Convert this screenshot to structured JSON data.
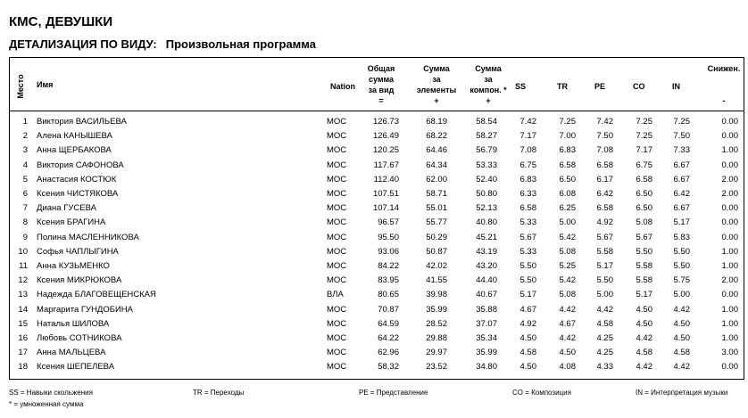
{
  "title": "КМС, ДЕВУШКИ",
  "subtitle": {
    "label": "ДЕТАЛИЗАЦИЯ ПО ВИДУ:",
    "program": "Произвольная программа"
  },
  "headers": {
    "place": "Место",
    "name": "Имя",
    "nation": "Nation",
    "total": [
      "Общая",
      "сумма",
      "за вид",
      "="
    ],
    "elements": [
      "Сумма",
      "за",
      "элементы",
      "+"
    ],
    "components": [
      "Сумма",
      "за",
      "компон. *",
      "+"
    ],
    "ss": "SS",
    "tr": "TR",
    "pe": "PE",
    "co": "CO",
    "in": "IN",
    "deductions": [
      "Снижен.",
      "-"
    ]
  },
  "rows": [
    {
      "place": "1",
      "name": "Виктория ВАСИЛЬЕВА",
      "nation": "МОС",
      "total": "126.73",
      "elements": "68.19",
      "components": "58.54",
      "ss": "7.42",
      "tr": "7.25",
      "pe": "7.42",
      "co": "7.25",
      "in": "7.25",
      "ded": "0.00"
    },
    {
      "place": "2",
      "name": "Алена КАНЫШЕВА",
      "nation": "МОС",
      "total": "126.49",
      "elements": "68.22",
      "components": "58.27",
      "ss": "7.17",
      "tr": "7.00",
      "pe": "7.50",
      "co": "7.25",
      "in": "7.50",
      "ded": "0.00"
    },
    {
      "place": "3",
      "name": "Анна ЩЕРБАКОВА",
      "nation": "МОС",
      "total": "120.25",
      "elements": "64.46",
      "components": "56.79",
      "ss": "7.08",
      "tr": "6.83",
      "pe": "7.08",
      "co": "7.17",
      "in": "7.33",
      "ded": "1.00"
    },
    {
      "place": "4",
      "name": "Виктория САФОНОВА",
      "nation": "МОС",
      "total": "117.67",
      "elements": "64.34",
      "components": "53.33",
      "ss": "6.75",
      "tr": "6.58",
      "pe": "6.58",
      "co": "6.75",
      "in": "6.67",
      "ded": "0.00"
    },
    {
      "place": "5",
      "name": "Анастасия КОСТЮК",
      "nation": "МОС",
      "total": "112.40",
      "elements": "62.00",
      "components": "52.40",
      "ss": "6.83",
      "tr": "6.50",
      "pe": "6.17",
      "co": "6.58",
      "in": "6.67",
      "ded": "2.00"
    },
    {
      "place": "6",
      "name": "Ксения ЧИСТЯКОВА",
      "nation": "МОС",
      "total": "107.51",
      "elements": "58.71",
      "components": "50.80",
      "ss": "6.33",
      "tr": "6.08",
      "pe": "6.42",
      "co": "6.50",
      "in": "6.42",
      "ded": "2.00"
    },
    {
      "place": "7",
      "name": "Диана ГУСЕВА",
      "nation": "МОС",
      "total": "107.14",
      "elements": "55.01",
      "components": "52.13",
      "ss": "6.58",
      "tr": "6.25",
      "pe": "6.58",
      "co": "6.50",
      "in": "6.67",
      "ded": "0.00"
    },
    {
      "place": "8",
      "name": "Ксения БРАГИНА",
      "nation": "МОС",
      "total": "96.57",
      "elements": "55.77",
      "components": "40.80",
      "ss": "5.33",
      "tr": "5.00",
      "pe": "4.92",
      "co": "5.08",
      "in": "5.17",
      "ded": "0.00"
    },
    {
      "place": "9",
      "name": "Полина МАСЛЕННИКОВА",
      "nation": "МОС",
      "total": "95.50",
      "elements": "50.29",
      "components": "45.21",
      "ss": "5.67",
      "tr": "5.42",
      "pe": "5.67",
      "co": "5.67",
      "in": "5.83",
      "ded": "0.00"
    },
    {
      "place": "10",
      "name": "Софья ЧАПЛЫГИНА",
      "nation": "МОС",
      "total": "93.06",
      "elements": "50.87",
      "components": "43.19",
      "ss": "5.33",
      "tr": "5.08",
      "pe": "5.58",
      "co": "5.50",
      "in": "5.50",
      "ded": "1.00"
    },
    {
      "place": "11",
      "name": "Анна КУЗЬМЕНКО",
      "nation": "МОС",
      "total": "84.22",
      "elements": "42.02",
      "components": "43.20",
      "ss": "5.50",
      "tr": "5.25",
      "pe": "5.17",
      "co": "5.58",
      "in": "5.50",
      "ded": "1.00"
    },
    {
      "place": "12",
      "name": "Ксения МИКРЮКОВА",
      "nation": "МОС",
      "total": "83.95",
      "elements": "41.55",
      "components": "44.40",
      "ss": "5.50",
      "tr": "5.42",
      "pe": "5.50",
      "co": "5.58",
      "in": "5.75",
      "ded": "2.00"
    },
    {
      "place": "13",
      "name": "Надежда БЛАГОВЕЩЕНСКАЯ",
      "nation": "ВЛА",
      "total": "80.65",
      "elements": "39.98",
      "components": "40.67",
      "ss": "5.17",
      "tr": "5.08",
      "pe": "5.00",
      "co": "5.17",
      "in": "5.00",
      "ded": "0.00"
    },
    {
      "place": "14",
      "name": "Маргарита ГУНДОБИНА",
      "nation": "МОС",
      "total": "70.87",
      "elements": "35.99",
      "components": "35.88",
      "ss": "4.67",
      "tr": "4.42",
      "pe": "4.42",
      "co": "4.50",
      "in": "4.42",
      "ded": "1.00"
    },
    {
      "place": "15",
      "name": "Наталья ШИЛОВА",
      "nation": "МОС",
      "total": "64.59",
      "elements": "28.52",
      "components": "37.07",
      "ss": "4.92",
      "tr": "4.67",
      "pe": "4.58",
      "co": "4.50",
      "in": "4.50",
      "ded": "1.00"
    },
    {
      "place": "16",
      "name": "Любовь СОТНИКОВА",
      "nation": "МОС",
      "total": "64.22",
      "elements": "29.88",
      "components": "35.34",
      "ss": "4.50",
      "tr": "4.42",
      "pe": "4.25",
      "co": "4.42",
      "in": "4.50",
      "ded": "1.00"
    },
    {
      "place": "17",
      "name": "Анна МАЛЬЦЕВА",
      "nation": "МОС",
      "total": "62.96",
      "elements": "29.97",
      "components": "35.99",
      "ss": "4.58",
      "tr": "4.50",
      "pe": "4.25",
      "co": "4.58",
      "in": "4.58",
      "ded": "3.00"
    },
    {
      "place": "18",
      "name": "Ксения ШЕПЕЛЕВА",
      "nation": "МОС",
      "total": "58.32",
      "elements": "23.52",
      "components": "34.80",
      "ss": "4.50",
      "tr": "4.08",
      "pe": "4.33",
      "co": "4.42",
      "in": "4.42",
      "ded": "0.00"
    }
  ],
  "legend": {
    "ss": "SS = Навыки скольжения",
    "tr": "TR = Переходы",
    "pe": "PE = Представление",
    "co": "CO = Композиция",
    "in": "IN = Интерпретация музыки",
    "note": "* = умноженная сумма"
  }
}
